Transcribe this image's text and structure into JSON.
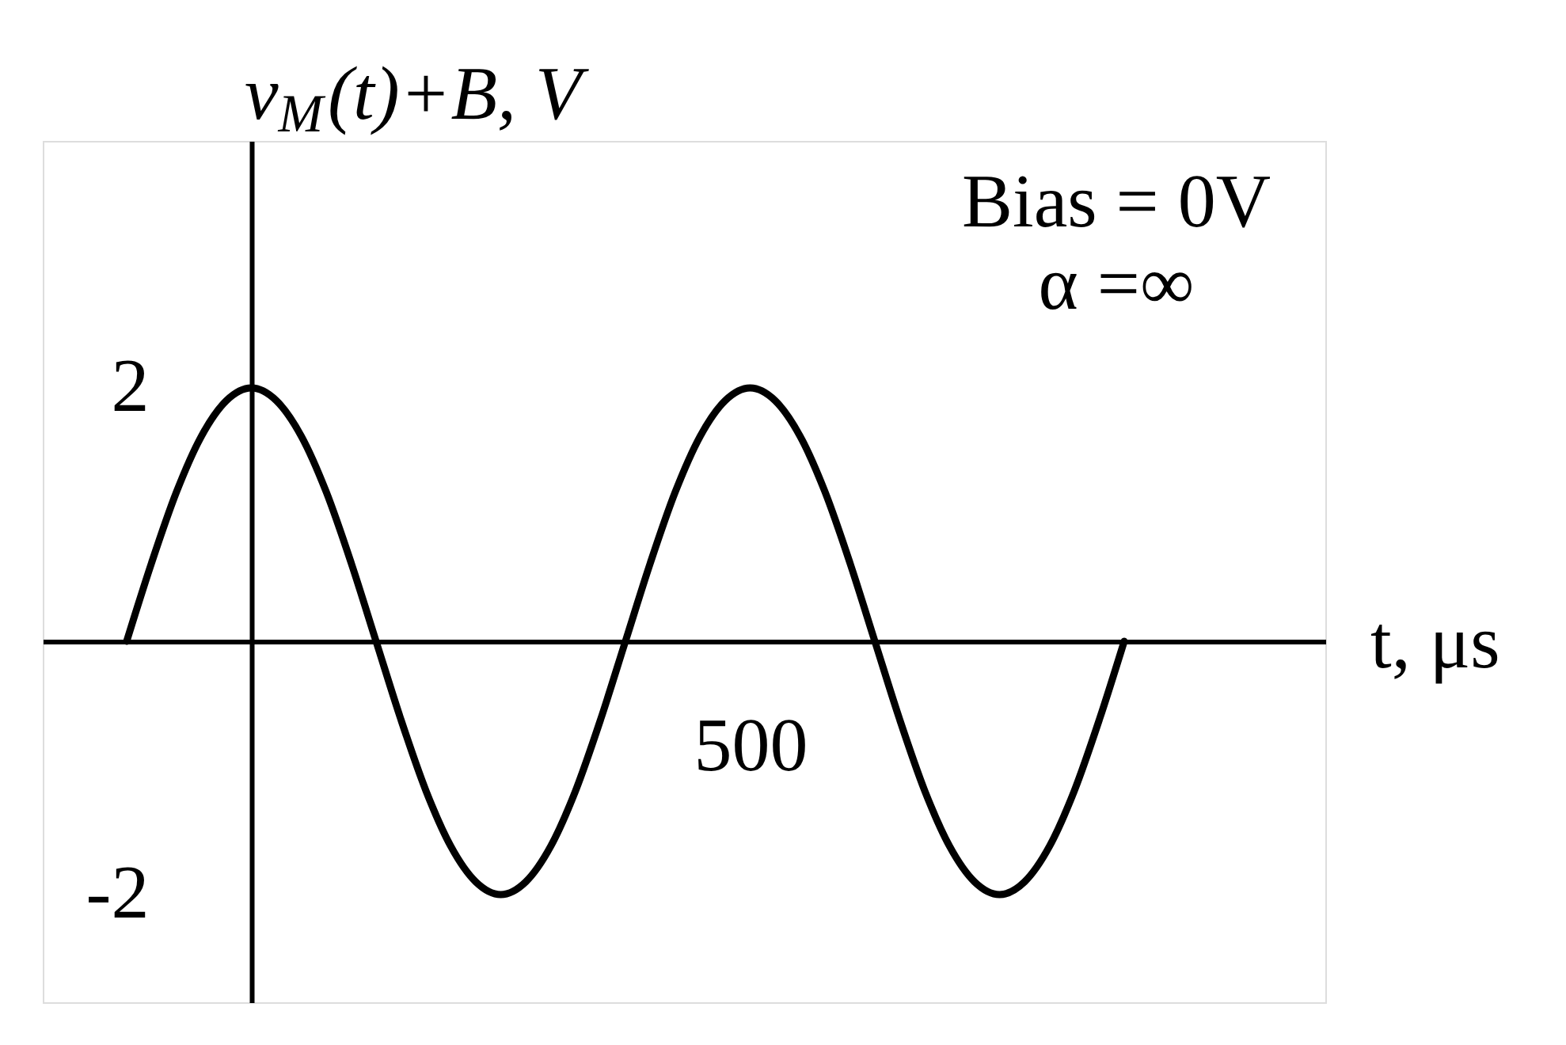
{
  "chart_data": {
    "type": "line",
    "xlabel": "t, μs",
    "ylabel": "v$_{M}$(t)+B, V",
    "annotations": [
      "Bias = 0V",
      "α =∞"
    ],
    "categories": [
      null,
      null,
      null,
      null,
      null,
      null,
      null,
      null,
      null,
      null,
      null,
      null,
      null,
      null,
      null,
      null,
      null,
      null,
      null,
      null,
      null,
      null,
      null,
      null,
      null,
      "500",
      null,
      null,
      null,
      null,
      null,
      null,
      null,
      null,
      null,
      null,
      null,
      null,
      null,
      null,
      null
    ],
    "series": [
      {
        "color": "#000000",
        "values": [
          0,
          0.62,
          1.18,
          1.62,
          1.9,
          2,
          1.9,
          1.62,
          1.18,
          0.62,
          0,
          -0.62,
          -1.18,
          -1.62,
          -1.9,
          -2,
          -1.9,
          -1.62,
          -1.18,
          -0.62,
          0,
          0.62,
          1.18,
          1.62,
          1.9,
          2,
          1.9,
          1.62,
          1.18,
          0.62,
          0,
          -0.62,
          -1.18,
          -1.62,
          -1.9,
          -2,
          -1.9,
          -1.62,
          -1.18,
          -0.62,
          0
        ]
      }
    ],
    "ylim": [
      -2.85,
      3.95
    ],
    "yticks": [
      -2,
      2
    ]
  }
}
